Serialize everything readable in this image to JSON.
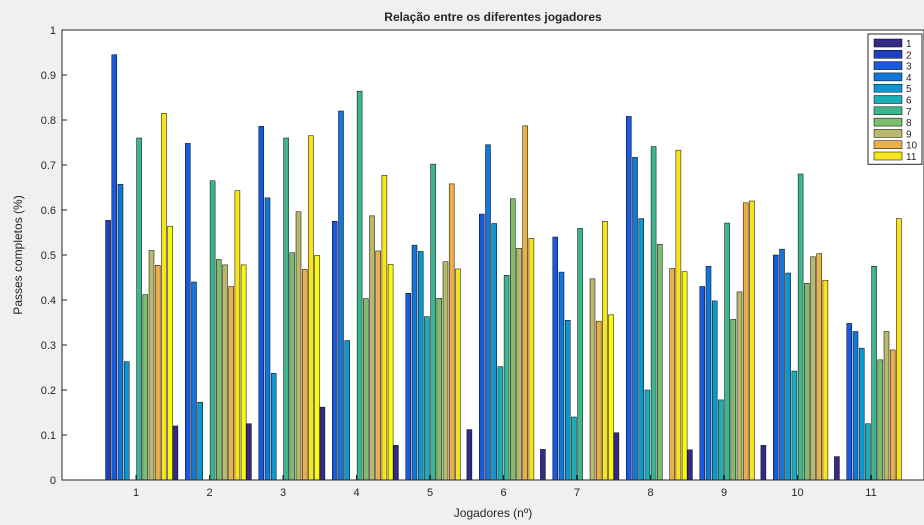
{
  "chart_data": {
    "type": "bar",
    "title": "Relação entre os diferentes jogadores",
    "xlabel": "Jogadores (nº)",
    "ylabel": "Passes completos (%)",
    "ylim": [
      0,
      1
    ],
    "yticks": [
      "0",
      "0.1",
      "0.2",
      "0.3",
      "0.4",
      "0.5",
      "0.6",
      "0.7",
      "0.8",
      "0.9",
      "1"
    ],
    "categories": [
      "1",
      "2",
      "3",
      "4",
      "5",
      "6",
      "7",
      "8",
      "9",
      "10",
      "11"
    ],
    "legend_position": "top-right",
    "grid": false,
    "series": [
      {
        "name": "1",
        "color": "#352a87",
        "values": [
          0,
          0.12,
          0.125,
          0.162,
          0.077,
          0.112,
          0.068,
          0.105,
          0.067,
          0.077,
          0.052
        ]
      },
      {
        "name": "2",
        "color": "#1f3fbf",
        "values": [
          0.577,
          0,
          0,
          0,
          0,
          0,
          0,
          0,
          0,
          0,
          0
        ]
      },
      {
        "name": "3",
        "color": "#1959e0",
        "values": [
          0.945,
          0.748,
          0.786,
          0.575,
          0.415,
          0.591,
          0.54,
          0.808,
          0.43,
          0.5,
          0.348
        ]
      },
      {
        "name": "4",
        "color": "#1476d6",
        "values": [
          0.657,
          0.44,
          0.627,
          0.82,
          0.522,
          0.745,
          0.462,
          0.717,
          0.475,
          0.513,
          0.33
        ]
      },
      {
        "name": "5",
        "color": "#0d97cf",
        "values": [
          0.263,
          0.173,
          0.237,
          0.31,
          0.508,
          0.57,
          0.355,
          0.581,
          0.398,
          0.46,
          0.293
        ]
      },
      {
        "name": "6",
        "color": "#19aeb8",
        "values": [
          0,
          0,
          0,
          0,
          0.363,
          0.252,
          0.14,
          0.2,
          0.178,
          0.242,
          0.125
        ]
      },
      {
        "name": "7",
        "color": "#3fb58f",
        "values": [
          0.76,
          0.665,
          0.76,
          0.864,
          0.702,
          0.455,
          0.559,
          0.741,
          0.571,
          0.68,
          0.475
        ]
      },
      {
        "name": "8",
        "color": "#7ebc6e",
        "values": [
          0.412,
          0.49,
          0.505,
          0.403,
          0.404,
          0.625,
          0,
          0.524,
          0.357,
          0.437,
          0.267
        ]
      },
      {
        "name": "9",
        "color": "#b8b96a",
        "values": [
          0.51,
          0.478,
          0.596,
          0.587,
          0.485,
          0.515,
          0.447,
          0,
          0.418,
          0.496,
          0.33
        ]
      },
      {
        "name": "10",
        "color": "#ecb04a",
        "values": [
          0.477,
          0.43,
          0.468,
          0.509,
          0.658,
          0.787,
          0.353,
          0.47,
          0.616,
          0.503,
          0.289
        ]
      },
      {
        "name": "11",
        "color": "#f8e41e",
        "values": [
          0.815,
          0.643,
          0.765,
          0.677,
          0.469,
          0.537,
          0.575,
          0.733,
          0.62,
          0.444,
          0.581
        ]
      },
      {
        "name": "",
        "color": "#f9fb0e",
        "values": [
          0.564,
          0.478,
          0.499,
          0.479,
          0,
          0,
          0.367,
          0.463,
          0,
          0,
          0
        ]
      }
    ]
  }
}
